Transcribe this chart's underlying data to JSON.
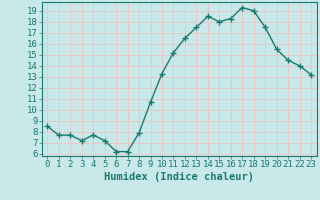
{
  "x": [
    0,
    1,
    2,
    3,
    4,
    5,
    6,
    7,
    8,
    9,
    10,
    11,
    12,
    13,
    14,
    15,
    16,
    17,
    18,
    19,
    20,
    21,
    22,
    23
  ],
  "y": [
    8.5,
    7.7,
    7.7,
    7.2,
    7.7,
    7.2,
    6.2,
    6.2,
    7.9,
    10.7,
    13.3,
    15.2,
    16.5,
    17.5,
    18.5,
    18.0,
    18.3,
    19.3,
    19.0,
    17.5,
    15.5,
    14.5,
    14.0,
    13.2
  ],
  "line_color": "#1a7a6e",
  "marker": "+",
  "marker_size": 4,
  "bg_color": "#c8e8ea",
  "grid_color": "#e8c8c8",
  "xlabel": "Humidex (Indice chaleur)",
  "ylim": [
    5.8,
    19.8
  ],
  "xlim": [
    -0.5,
    23.5
  ],
  "yticks": [
    6,
    7,
    8,
    9,
    10,
    11,
    12,
    13,
    14,
    15,
    16,
    17,
    18,
    19
  ],
  "xticks": [
    0,
    1,
    2,
    3,
    4,
    5,
    6,
    7,
    8,
    9,
    10,
    11,
    12,
    13,
    14,
    15,
    16,
    17,
    18,
    19,
    20,
    21,
    22,
    23
  ],
  "tick_color": "#1a7a6e",
  "label_color": "#1a7a6e",
  "font_size": 6.5,
  "xlabel_fontsize": 7.5,
  "linewidth": 1.0,
  "marker_linewidth": 1.0
}
